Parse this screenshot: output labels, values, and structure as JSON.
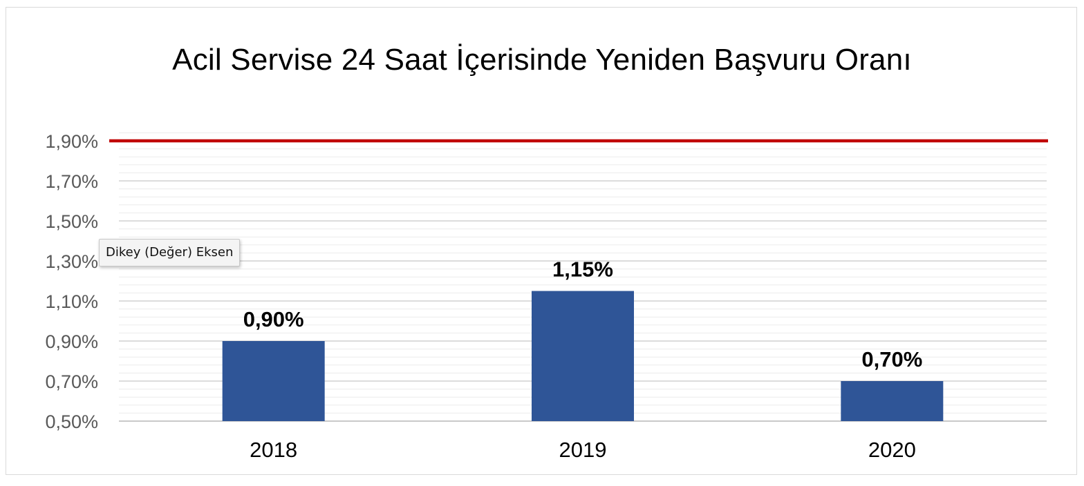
{
  "chart_data": {
    "type": "bar",
    "title": "Acil Servise 24 Saat İçerisinde Yeniden Başvuru Oranı",
    "categories": [
      "2018",
      "2019",
      "2020"
    ],
    "values": [
      0.9,
      1.15,
      0.7
    ],
    "data_labels": [
      "0,90%",
      "1,15%",
      "0,70%"
    ],
    "xlabel": "",
    "ylabel": "",
    "ylim": [
      0.5,
      1.96
    ],
    "y_ticks": [
      0.5,
      0.7,
      0.9,
      1.1,
      1.3,
      1.5,
      1.7,
      1.9
    ],
    "y_tick_labels": [
      "0,50%",
      "0,70%",
      "0,90%",
      "1,10%",
      "1,30%",
      "1,50%",
      "1,70%",
      "1,90%"
    ],
    "target_line": {
      "value": 1.9,
      "color": "#c00000"
    },
    "bar_color": "#2f5597",
    "grid": true,
    "legend": "none"
  },
  "tooltip": {
    "text": "Dikey (Değer) Eksen"
  }
}
